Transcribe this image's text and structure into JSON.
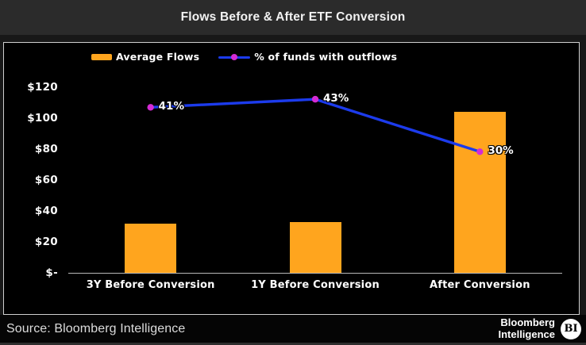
{
  "window": {
    "title": "Flows Before & After ETF Conversion"
  },
  "legend": {
    "bar_label": "Average Flows",
    "line_label": "% of funds with outflows"
  },
  "chart_data": {
    "type": "combo",
    "categories": [
      "3Y Before Conversion",
      "1Y Before Conversion",
      "After Conversion"
    ],
    "series": [
      {
        "name": "Average Flows",
        "type": "bar",
        "unit": "USD (hundred millions implied by $ ticks)",
        "values": [
          32,
          33,
          104
        ],
        "color": "#FFA51E"
      },
      {
        "name": "% of funds with outflows",
        "type": "line",
        "unit": "percent",
        "values": [
          41,
          43,
          30
        ],
        "point_labels": [
          "41%",
          "43%",
          "30%"
        ],
        "line_color": "#1C3BEC",
        "marker_color": "#D42BD4"
      }
    ],
    "y_axis": {
      "tick_labels": [
        "$120",
        "$100",
        "$80",
        "$60",
        "$40",
        "$20",
        "$-"
      ],
      "tick_values": [
        120,
        100,
        80,
        60,
        40,
        20,
        0
      ],
      "ylim": [
        0,
        120
      ]
    },
    "secondary_axis_visible": false,
    "grid": false,
    "legend_position": "top",
    "plot_background": "#000000",
    "title": "Flows Before & After ETF Conversion"
  },
  "footer": {
    "source": "Source: Bloomberg Intelligence",
    "brand_line1": "Bloomberg",
    "brand_line2": "Intelligence",
    "brand_badge": "BI"
  },
  "colors": {
    "titlebar_bg": "#2b2b2b",
    "panel_border": "#cfcfcf",
    "bar_orange": "#FFA51E",
    "line_blue": "#1C3BEC",
    "marker_magenta": "#D42BD4",
    "axis_line": "#b8b8b8",
    "text": "#ffffff"
  }
}
